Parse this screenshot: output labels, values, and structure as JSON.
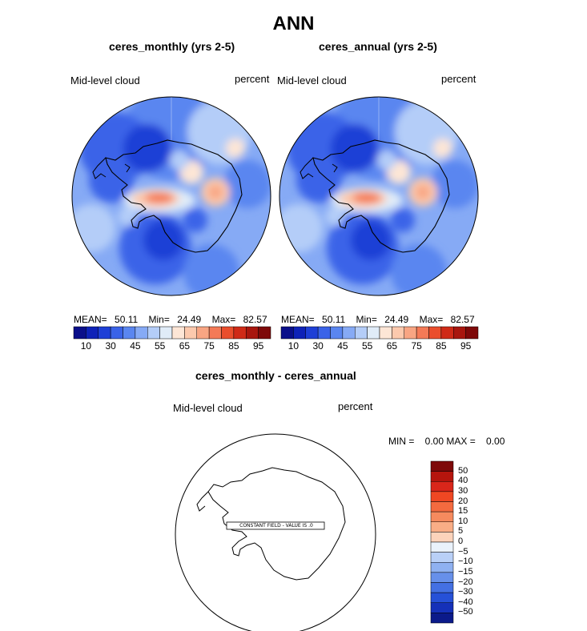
{
  "page": {
    "title": "ANN"
  },
  "panels": [
    {
      "subtitle": "ceres_monthly (yrs 2-5)",
      "field": "Mid-level cloud",
      "units": "percent",
      "stats": {
        "mean_label": "MEAN=",
        "mean": "50.11",
        "min_label": "Min=",
        "min": "24.49",
        "max_label": "Max=",
        "max": "82.57"
      }
    },
    {
      "subtitle": "ceres_annual (yrs 2-5)",
      "field": "Mid-level cloud",
      "units": "percent",
      "stats": {
        "mean_label": "MEAN=",
        "mean": "50.11",
        "min_label": "Min=",
        "min": "24.49",
        "max_label": "Max=",
        "max": "82.57"
      }
    }
  ],
  "colorbar": {
    "colors": [
      "#0a0f8a",
      "#0e22b8",
      "#1e3fd6",
      "#3a63e8",
      "#5a86f0",
      "#86aaf5",
      "#b4cdf8",
      "#e0ecf8",
      "#fde6d6",
      "#fcc9ad",
      "#f8a583",
      "#f47a57",
      "#ea4e2c",
      "#cf2a17",
      "#a8160e",
      "#7e0909"
    ],
    "labels": [
      "10",
      "30",
      "45",
      "55",
      "65",
      "75",
      "85",
      "95"
    ]
  },
  "diff": {
    "subtitle": "ceres_monthly - ceres_annual",
    "field": "Mid-level cloud",
    "units": "percent",
    "minmax_text": "MIN =    0.00 MAX =    0.00",
    "constant_label": "CONSTANT FIELD - VALUE IS .0",
    "colorbar": {
      "colors": [
        "#7e0909",
        "#b5150d",
        "#d9261a",
        "#ef4723",
        "#f46a3f",
        "#f68a5e",
        "#f9ad86",
        "#fcd3bb",
        "#eaf2fb",
        "#b9d0f7",
        "#8fb1f1",
        "#6790ea",
        "#4470e3",
        "#2651d8",
        "#1531b9",
        "#0b1a8a"
      ],
      "labels": [
        "50",
        "40",
        "30",
        "20",
        "15",
        "10",
        "5",
        "0",
        "−5",
        "−10",
        "−15",
        "−20",
        "−30",
        "−40",
        "−50"
      ]
    }
  }
}
